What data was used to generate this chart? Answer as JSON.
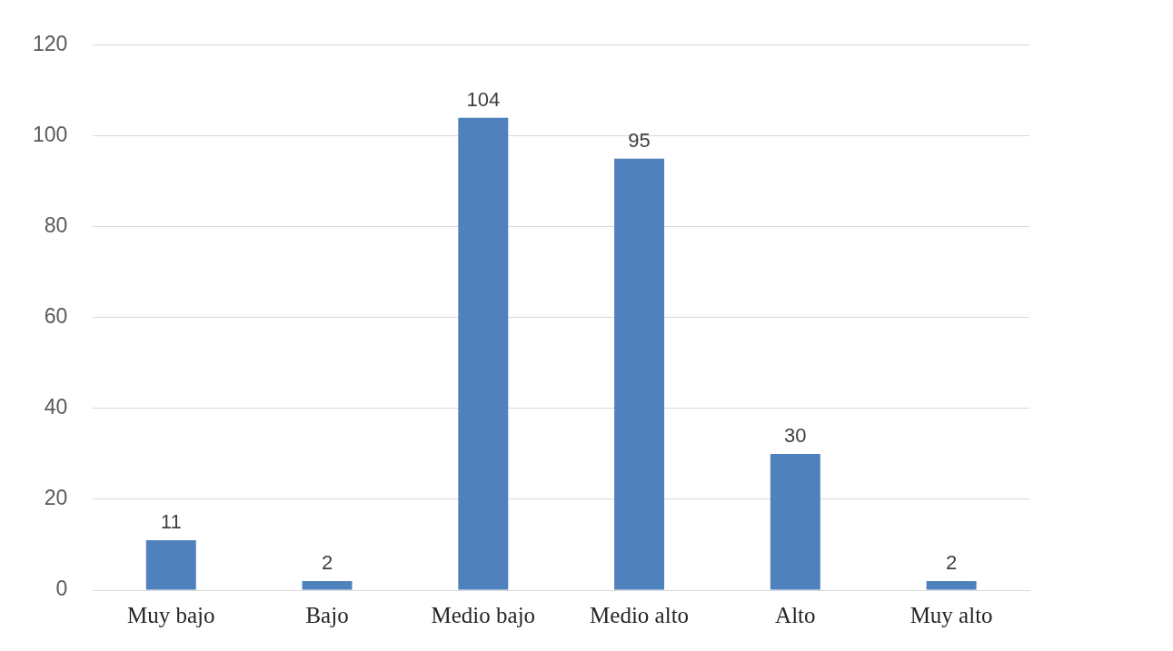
{
  "chart_data": {
    "type": "bar",
    "categories": [
      "Muy bajo",
      "Bajo",
      "Medio bajo",
      "Medio alto",
      "Alto",
      "Muy alto"
    ],
    "values": [
      11,
      2,
      104,
      95,
      30,
      2
    ],
    "color": "#4f81bd",
    "ylim": [
      0,
      120
    ],
    "yticks": [
      0,
      20,
      40,
      60,
      80,
      100,
      120
    ],
    "grid": "y",
    "data_labels": true,
    "legend": false
  }
}
